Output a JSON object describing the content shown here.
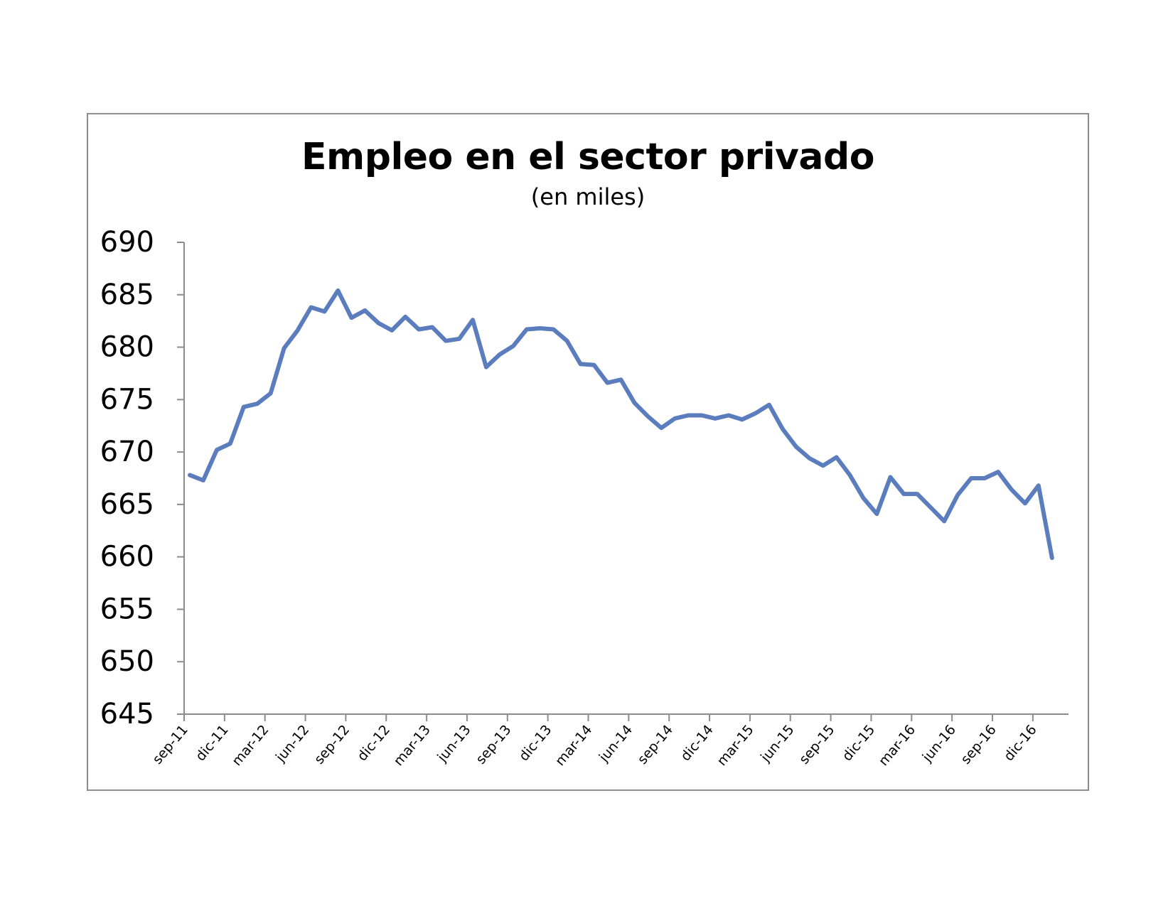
{
  "chart_data": {
    "type": "line",
    "title": "Empleo en el sector privado",
    "subtitle": "(en miles)",
    "xlabel": "",
    "ylabel": "",
    "ylim": [
      645,
      690
    ],
    "yticks": [
      "690",
      "685",
      "680",
      "675",
      "670",
      "665",
      "660",
      "655",
      "650",
      "645"
    ],
    "xtick_labels": [
      "sep-11",
      "dic-11",
      "mar-12",
      "jun-12",
      "sep-12",
      "dic-12",
      "mar-13",
      "jun-13",
      "sep-13",
      "dic-13",
      "mar-14",
      "jun-14",
      "sep-14",
      "dic-14",
      "mar-15",
      "jun-15",
      "sep-15",
      "dic-15",
      "mar-16",
      "jun-16",
      "sep-16",
      "dic-16"
    ],
    "grid": false,
    "line_color": "#5b7dbd",
    "series": [
      {
        "values": [
          667.8,
          667.3,
          670.2,
          670.8,
          674.3,
          674.6,
          675.6,
          679.9,
          681.6,
          683.8,
          683.4,
          685.4,
          682.8,
          683.5,
          682.3,
          681.6,
          682.9,
          681.7,
          681.9,
          680.6,
          680.8,
          682.6,
          678.1,
          679.3,
          680.1,
          681.7,
          681.8,
          681.7,
          680.6,
          678.4,
          678.3,
          676.6,
          676.9,
          674.7,
          673.4,
          672.3,
          673.2,
          673.5,
          673.5,
          673.2,
          673.5,
          673.1,
          673.7,
          674.5,
          672.2,
          670.5,
          669.4,
          668.7,
          669.5,
          667.8,
          665.6,
          664.1,
          667.6,
          666.0,
          666.0,
          664.7,
          663.4,
          665.9,
          667.5,
          667.5,
          668.1,
          666.4,
          665.1,
          666.8,
          659.9
        ]
      }
    ]
  }
}
